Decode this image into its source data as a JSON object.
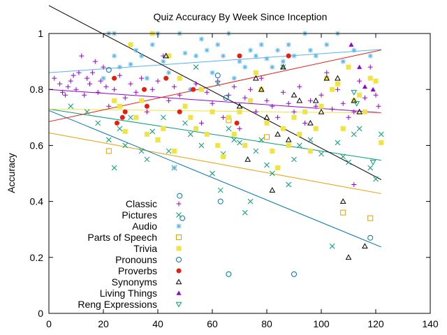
{
  "chart_data": {
    "type": "scatter",
    "title": "Quiz Accuracy By Week Since Inception",
    "xlabel": "",
    "ylabel": "Accuracy",
    "xlim": [
      0,
      140
    ],
    "ylim": [
      0,
      1
    ],
    "xticks": [
      0,
      20,
      40,
      60,
      80,
      100,
      120,
      140
    ],
    "yticks": [
      0,
      0.2,
      0.4,
      0.6,
      0.8,
      1
    ],
    "grid": false,
    "legend": "bottom-left",
    "series": [
      {
        "name": "Classic",
        "marker": "plus",
        "color": "#9400d3",
        "fit": [
          0.8,
          -0.00068
        ],
        "points": [
          [
            2,
            0.84
          ],
          [
            4,
            0.82
          ],
          [
            5,
            0.79
          ],
          [
            6,
            0.78
          ],
          [
            7,
            0.81
          ],
          [
            8,
            0.83
          ],
          [
            9,
            0.85
          ],
          [
            10,
            0.8
          ],
          [
            11,
            0.86
          ],
          [
            12,
            0.92
          ],
          [
            13,
            0.78
          ],
          [
            14,
            0.84
          ],
          [
            15,
            0.82
          ],
          [
            16,
            0.86
          ],
          [
            17,
            0.9
          ],
          [
            18,
            0.79
          ],
          [
            19,
            0.83
          ],
          [
            20,
            0.88
          ],
          [
            21,
            0.81
          ],
          [
            22,
            0.74
          ],
          [
            24,
            0.8
          ],
          [
            26,
            0.85
          ],
          [
            28,
            0.77
          ],
          [
            30,
            0.82
          ],
          [
            32,
            0.79
          ],
          [
            34,
            0.84
          ],
          [
            36,
            0.72
          ],
          [
            38,
            0.8
          ],
          [
            40,
            0.83
          ],
          [
            42,
            0.92
          ],
          [
            44,
            0.76
          ],
          [
            46,
            0.81
          ],
          [
            48,
            0.78
          ],
          [
            50,
            0.74
          ],
          [
            52,
            0.8
          ],
          [
            54,
            0.82
          ],
          [
            56,
            0.68
          ],
          [
            58,
            0.79
          ],
          [
            60,
            0.75
          ],
          [
            62,
            0.83
          ],
          [
            64,
            0.7
          ],
          [
            66,
            0.78
          ],
          [
            68,
            0.81
          ],
          [
            70,
            0.66
          ],
          [
            72,
            0.77
          ],
          [
            74,
            0.8
          ],
          [
            76,
            0.72
          ],
          [
            78,
            0.84
          ],
          [
            80,
            0.76
          ],
          [
            82,
            0.74
          ],
          [
            84,
            0.7
          ],
          [
            86,
            0.79
          ],
          [
            88,
            0.75
          ],
          [
            90,
            0.72
          ],
          [
            92,
            0.81
          ],
          [
            94,
            0.68
          ],
          [
            96,
            0.76
          ],
          [
            98,
            0.74
          ],
          [
            100,
            0.78
          ],
          [
            102,
            0.86
          ],
          [
            104,
            0.73
          ],
          [
            106,
            0.8
          ],
          [
            108,
            0.75
          ],
          [
            110,
            0.7
          ],
          [
            112,
            0.72
          ],
          [
            114,
            0.83
          ],
          [
            116,
            0.77
          ],
          [
            118,
            0.88
          ],
          [
            120,
            0.78
          ],
          [
            121,
            0.74
          ],
          [
            112,
            0.46
          ]
        ]
      },
      {
        "name": "Pictures",
        "marker": "cross",
        "color": "#009e73",
        "fit": [
          0.73,
          -0.0015
        ],
        "points": [
          [
            8,
            0.74
          ],
          [
            14,
            0.72
          ],
          [
            18,
            0.68
          ],
          [
            22,
            0.62
          ],
          [
            24,
            0.52
          ],
          [
            26,
            0.66
          ],
          [
            28,
            0.6
          ],
          [
            30,
            0.7
          ],
          [
            34,
            0.58
          ],
          [
            36,
            0.55
          ],
          [
            38,
            0.65
          ],
          [
            40,
            0.62
          ],
          [
            42,
            0.7
          ],
          [
            44,
            0.58
          ],
          [
            46,
            0.52
          ],
          [
            50,
            0.68
          ],
          [
            52,
            0.64
          ],
          [
            54,
            0.88
          ],
          [
            56,
            0.6
          ],
          [
            60,
            0.5
          ],
          [
            62,
            0.82
          ],
          [
            63,
            0.44
          ],
          [
            64,
            0.57
          ],
          [
            66,
            0.66
          ],
          [
            68,
            0.62
          ],
          [
            70,
            0.61
          ],
          [
            72,
            0.36
          ],
          [
            74,
            0.4
          ],
          [
            76,
            0.58
          ],
          [
            78,
            0.62
          ],
          [
            80,
            0.53
          ],
          [
            82,
            0.5
          ],
          [
            86,
            0.88
          ],
          [
            88,
            0.46
          ],
          [
            90,
            0.55
          ],
          [
            92,
            0.6
          ],
          [
            96,
            0.62
          ],
          [
            100,
            0.57
          ],
          [
            104,
            0.24
          ],
          [
            106,
            0.61
          ],
          [
            108,
            0.56
          ],
          [
            110,
            0.54
          ],
          [
            112,
            0.64
          ],
          [
            114,
            0.66
          ],
          [
            118,
            0.52
          ],
          [
            120,
            0.48
          ],
          [
            122,
            0.64
          ]
        ]
      },
      {
        "name": "Audio",
        "marker": "star",
        "color": "#56b4e9",
        "fit": [
          0.86,
          0.00068
        ],
        "points": [
          [
            20,
            0.84
          ],
          [
            22,
            1.0
          ],
          [
            24,
            0.92
          ],
          [
            26,
            0.88
          ],
          [
            30,
            0.89
          ],
          [
            32,
            0.94
          ],
          [
            34,
            0.92
          ],
          [
            36,
            0.84
          ],
          [
            38,
            0.96
          ],
          [
            40,
            1.0
          ],
          [
            42,
            0.9
          ],
          [
            44,
            0.86
          ],
          [
            46,
            0.52
          ],
          [
            48,
            1.0
          ],
          [
            50,
            0.93
          ],
          [
            52,
            0.8
          ],
          [
            54,
            0.92
          ],
          [
            56,
            0.98
          ],
          [
            58,
            0.94
          ],
          [
            60,
            0.86
          ],
          [
            62,
            0.96
          ],
          [
            64,
            0.92
          ],
          [
            66,
            1.0
          ],
          [
            68,
            0.84
          ],
          [
            70,
            0.9
          ],
          [
            72,
            0.88
          ],
          [
            74,
            0.94
          ],
          [
            76,
            0.92
          ],
          [
            78,
            0.96
          ],
          [
            80,
            0.91
          ],
          [
            82,
            0.88
          ],
          [
            84,
            0.94
          ],
          [
            86,
            0.9
          ],
          [
            88,
            0.96
          ],
          [
            90,
            0.92
          ],
          [
            94,
            1.0
          ],
          [
            96,
            0.94
          ],
          [
            98,
            0.92
          ],
          [
            102,
            0.96
          ],
          [
            106,
            1.0
          ],
          [
            108,
            0.9
          ],
          [
            112,
            0.94
          ],
          [
            118,
            0.92
          ],
          [
            30,
            0.96
          ],
          [
            24,
            1.0
          ]
        ]
      },
      {
        "name": "Parts of Speech",
        "marker": "square-open",
        "color": "#e69f00",
        "fit": [
          0.645,
          -0.00178
        ],
        "points": [
          [
            22,
            0.58
          ],
          [
            66,
            0.69
          ],
          [
            80,
            0.63
          ],
          [
            108,
            0.36
          ],
          [
            118,
            0.34
          ]
        ]
      },
      {
        "name": "Trivia",
        "marker": "square-filled",
        "color": "#f0e442",
        "fit": [
          0.73,
          -0.00012
        ],
        "points": [
          [
            24,
            0.76
          ],
          [
            26,
            0.74
          ],
          [
            28,
            0.65
          ],
          [
            30,
            0.96
          ],
          [
            32,
            0.7
          ],
          [
            34,
            0.76
          ],
          [
            36,
            0.64
          ],
          [
            38,
            1.0
          ],
          [
            40,
            0.62
          ],
          [
            42,
            0.66
          ],
          [
            44,
            0.92
          ],
          [
            46,
            0.58
          ],
          [
            48,
            0.84
          ],
          [
            50,
            0.74
          ],
          [
            52,
            0.7
          ],
          [
            54,
            0.66
          ],
          [
            56,
            0.8
          ],
          [
            58,
            0.64
          ],
          [
            60,
            0.72
          ],
          [
            62,
            0.6
          ],
          [
            64,
            0.56
          ],
          [
            66,
            0.7
          ],
          [
            68,
            0.64
          ],
          [
            70,
            0.72
          ],
          [
            72,
            0.6
          ],
          [
            74,
            0.76
          ],
          [
            76,
            0.86
          ],
          [
            78,
            0.8
          ],
          [
            80,
            0.68
          ],
          [
            82,
            0.58
          ],
          [
            84,
            0.52
          ],
          [
            86,
            0.66
          ],
          [
            88,
            0.6
          ],
          [
            90,
            0.7
          ],
          [
            92,
            0.64
          ],
          [
            94,
            0.72
          ],
          [
            96,
            0.58
          ],
          [
            98,
            0.66
          ],
          [
            100,
            0.74
          ],
          [
            102,
            0.84
          ],
          [
            104,
            0.8
          ],
          [
            106,
            0.82
          ],
          [
            108,
            0.66
          ],
          [
            110,
            0.88
          ],
          [
            112,
            0.76
          ],
          [
            114,
            0.78
          ],
          [
            116,
            0.72
          ],
          [
            118,
            0.84
          ],
          [
            120,
            0.83
          ],
          [
            122,
            0.61
          ]
        ]
      },
      {
        "name": "Pronouns",
        "marker": "circle-open",
        "color": "#0072b2",
        "fit": [
          0.725,
          -0.004
        ],
        "points": [
          [
            22,
            0.87
          ],
          [
            48,
            0.42
          ],
          [
            49,
            0.34
          ],
          [
            62,
            0.85
          ],
          [
            63,
            0.4
          ],
          [
            65,
            0.77
          ],
          [
            66,
            0.14
          ],
          [
            90,
            0.14
          ],
          [
            118,
            0.27
          ]
        ]
      },
      {
        "name": "Proverbs",
        "marker": "circle-filled",
        "color": "#e51e10",
        "fit": [
          0.685,
          0.0021
        ],
        "points": [
          [
            24,
            0.84
          ],
          [
            25,
            0.68
          ],
          [
            27,
            0.7
          ],
          [
            28,
            0.72
          ],
          [
            35,
            0.8
          ],
          [
            36,
            0.74
          ],
          [
            43,
            0.84
          ],
          [
            48,
            0.72
          ],
          [
            53,
            0.8
          ],
          [
            69,
            0.68
          ],
          [
            70,
            0.92
          ],
          [
            88,
            0.92
          ]
        ]
      },
      {
        "name": "Synonyms",
        "marker": "triangle-open",
        "color": "#000000",
        "fit": [
          1.1,
          -0.0051
        ],
        "points": [
          [
            43,
            0.92
          ],
          [
            70,
            0.74
          ],
          [
            73,
            0.55
          ],
          [
            76,
            0.84
          ],
          [
            78,
            0.8
          ],
          [
            80,
            0.7
          ],
          [
            82,
            0.44
          ],
          [
            84,
            0.64
          ],
          [
            86,
            0.88
          ],
          [
            88,
            0.62
          ],
          [
            90,
            0.78
          ],
          [
            92,
            0.76
          ],
          [
            96,
            0.68
          ],
          [
            98,
            0.76
          ],
          [
            100,
            0.72
          ],
          [
            102,
            0.84
          ],
          [
            106,
            0.84
          ],
          [
            108,
            0.4
          ],
          [
            110,
            0.2
          ],
          [
            112,
            0.76
          ],
          [
            114,
            0.72
          ],
          [
            116,
            0.24
          ]
        ]
      },
      {
        "name": "Living Things",
        "marker": "triangle-filled",
        "color": "#9400d3",
        "fit": null,
        "points": [
          [
            111,
            0.96
          ],
          [
            114,
            0.88
          ],
          [
            119,
            0.8
          ],
          [
            116,
            0.81
          ]
        ]
      },
      {
        "name": "Reng Expressions",
        "marker": "triangle-down-open",
        "color": "#009e73",
        "fit": null,
        "points": [
          [
            112,
            0.79
          ],
          [
            113,
            0.75
          ],
          [
            119,
            0.54
          ]
        ]
      }
    ]
  }
}
